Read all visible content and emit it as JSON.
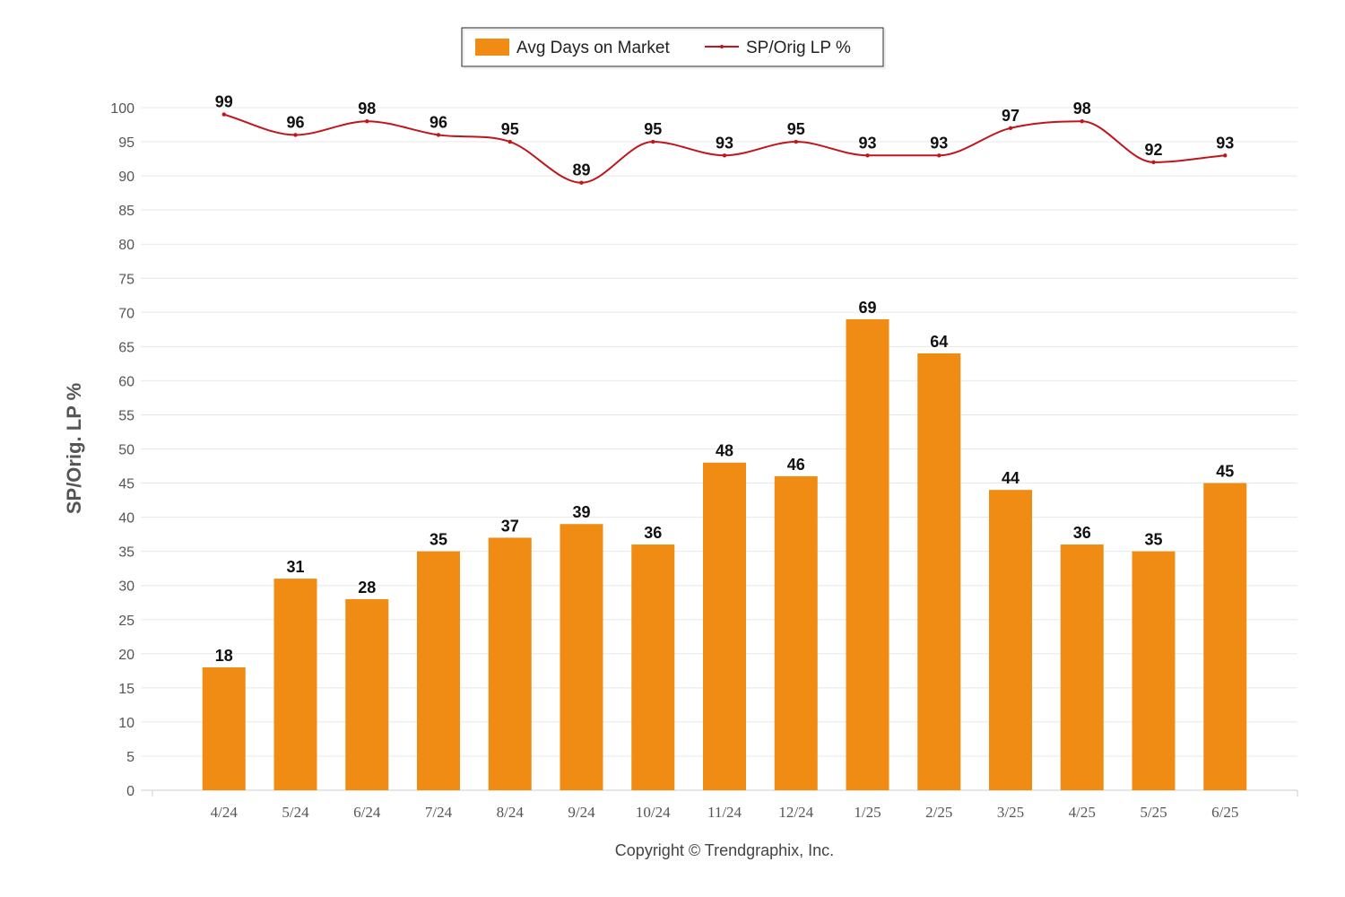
{
  "chart_data": {
    "type": "bar",
    "categories": [
      "4/24",
      "5/24",
      "6/24",
      "7/24",
      "8/24",
      "9/24",
      "10/24",
      "11/24",
      "12/24",
      "1/25",
      "2/25",
      "3/25",
      "4/25",
      "5/25",
      "6/25"
    ],
    "series": [
      {
        "name": "Avg Days on Market",
        "type": "bar",
        "color": "#F08C14",
        "values": [
          18,
          31,
          28,
          35,
          37,
          39,
          36,
          48,
          46,
          69,
          64,
          44,
          36,
          35,
          45
        ]
      },
      {
        "name": "SP/Orig LP %",
        "type": "line",
        "color": "#C0151B",
        "values": [
          99,
          96,
          98,
          96,
          95,
          89,
          95,
          93,
          95,
          93,
          93,
          97,
          98,
          92,
          93
        ]
      }
    ],
    "ylabel": "SP/Orig. LP %",
    "ylim": [
      0,
      100
    ],
    "yticks": [
      0,
      5,
      10,
      15,
      20,
      25,
      30,
      35,
      40,
      45,
      50,
      55,
      60,
      65,
      70,
      75,
      80,
      85,
      90,
      95,
      100
    ],
    "grid": true,
    "legend": "top-center",
    "data_labels": true
  },
  "footer": {
    "copyright": "Copyright © Trendgraphix, Inc."
  },
  "colors": {
    "grid": "#e8e8e8",
    "axis": "#cccccc",
    "legend_border": "#222222"
  }
}
